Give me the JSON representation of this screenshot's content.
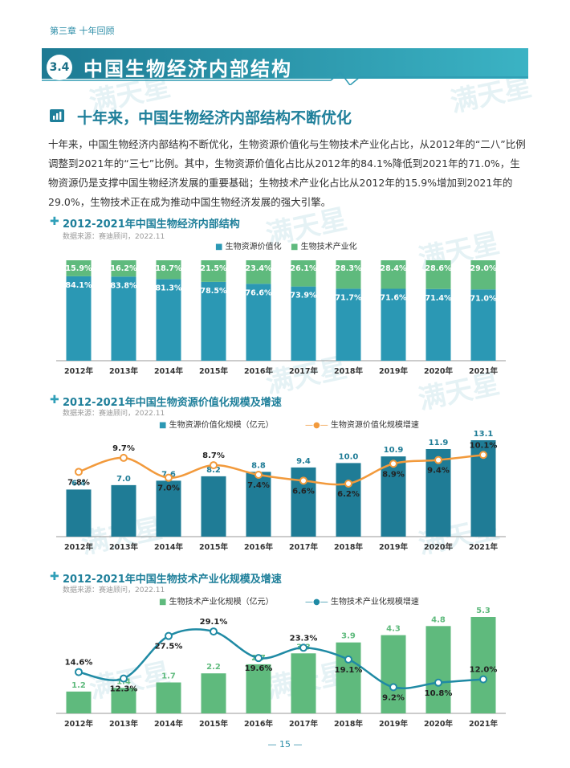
{
  "chapter_label": "第三章 十年回顾",
  "section": {
    "number": "3.4",
    "title": "中国生物经济内部结构"
  },
  "subsection_title": "十年来，中国生物经济内部结构不断优化",
  "paragraph": "十年来，中国生物经济内部结构不断优化，生物资源价值化与生物技术产业化占比，从2012年的“二八”比例调整到2021年的“三七”比例。其中，生物资源价值化占比从2012年的84.1%降低到2021年的71.0%，生物资源仍是支撑中国生物经济发展的重要基础；生物技术产业化占比从2012年的15.9%增加到2021年的29.0%，生物技术正在成为推动中国生物经济发展的强大引擎。",
  "watermark": "满天星",
  "page_number": "— 15 —",
  "colors": {
    "teal": "#2b98b4",
    "teal_dark": "#1f7c96",
    "green": "#5fba7d",
    "orange": "#f29a3c",
    "line_teal": "#1f8aa4"
  },
  "chart_data": [
    {
      "type": "bar",
      "stacked": true,
      "title": "2012-2021年中国生物经济内部结构",
      "source": "数据来源：赛迪顾问，2022.11",
      "categories": [
        "2012年",
        "2013年",
        "2014年",
        "2015年",
        "2016年",
        "2017年",
        "2018年",
        "2019年",
        "2020年",
        "2021年"
      ],
      "series": [
        {
          "name": "生物资源价值化",
          "values": [
            84.1,
            83.8,
            81.3,
            78.5,
            76.6,
            73.9,
            71.7,
            71.6,
            71.4,
            71.0
          ],
          "labels": [
            "84.1%",
            "83.8%",
            "81.3%",
            "78.5%",
            "76.6%",
            "73.9%",
            "71.7%",
            "71.6%",
            "71.4%",
            "71.0%"
          ]
        },
        {
          "name": "生物技术产业化",
          "values": [
            15.9,
            16.2,
            18.7,
            21.5,
            23.4,
            26.1,
            28.3,
            28.4,
            28.6,
            29.0
          ],
          "labels": [
            "15.9%",
            "16.2%",
            "18.7%",
            "21.5%",
            "23.4%",
            "26.1%",
            "28.3%",
            "28.4%",
            "28.6%",
            "29.0%"
          ]
        }
      ],
      "ylim": [
        0,
        100
      ]
    },
    {
      "type": "bar",
      "title": "2012-2021年中国生物资源价值化规模及增速",
      "source": "数据来源：赛迪顾问，2022.11",
      "categories": [
        "2012年",
        "2013年",
        "2014年",
        "2015年",
        "2016年",
        "2017年",
        "2018年",
        "2019年",
        "2020年",
        "2021年"
      ],
      "bar_series": {
        "name": "生物资源价值化规模（亿元）",
        "values": [
          6.4,
          7.0,
          7.6,
          8.2,
          8.8,
          9.4,
          10.0,
          10.9,
          11.9,
          13.1
        ],
        "labels": [
          "6.4",
          "7.0",
          "7.6",
          "8.2",
          "8.8",
          "9.4",
          "10.0",
          "10.9",
          "11.9",
          "13.1"
        ]
      },
      "line_series": {
        "name": "生物资源价值化规模增速",
        "values": [
          7.8,
          9.7,
          7.0,
          8.7,
          7.4,
          6.6,
          6.2,
          8.9,
          9.4,
          10.1
        ],
        "labels": [
          "7.8%",
          "9.7%",
          "7.0%",
          "8.7%",
          "7.4%",
          "6.6%",
          "6.2%",
          "8.9%",
          "9.4%",
          "10.1%"
        ]
      }
    },
    {
      "type": "bar",
      "title": "2012-2021年中国生物技术产业化规模及增速",
      "source": "数据来源：赛迪顾问，2022.11",
      "categories": [
        "2012年",
        "2013年",
        "2014年",
        "2015年",
        "2016年",
        "2017年",
        "2018年",
        "2019年",
        "2020年",
        "2021年"
      ],
      "bar_series": {
        "name": "生物技术产业化规模（亿元）",
        "values": [
          1.2,
          1.4,
          1.7,
          2.2,
          2.7,
          3.3,
          3.9,
          4.3,
          4.8,
          5.3
        ],
        "labels": [
          "1.2",
          "1.4",
          "1.7",
          "2.2",
          "2.7",
          "3.3",
          "3.9",
          "4.3",
          "4.8",
          "5.3"
        ]
      },
      "line_series": {
        "name": "生物技术产业化规模增速",
        "values": [
          14.6,
          12.3,
          27.5,
          29.1,
          19.6,
          23.3,
          19.1,
          9.2,
          10.8,
          12.0
        ],
        "labels": [
          "14.6%",
          "12.3%",
          "27.5%",
          "29.1%",
          "19.6%",
          "23.3%",
          "19.1%",
          "9.2%",
          "10.8%",
          "12.0%"
        ]
      }
    }
  ]
}
